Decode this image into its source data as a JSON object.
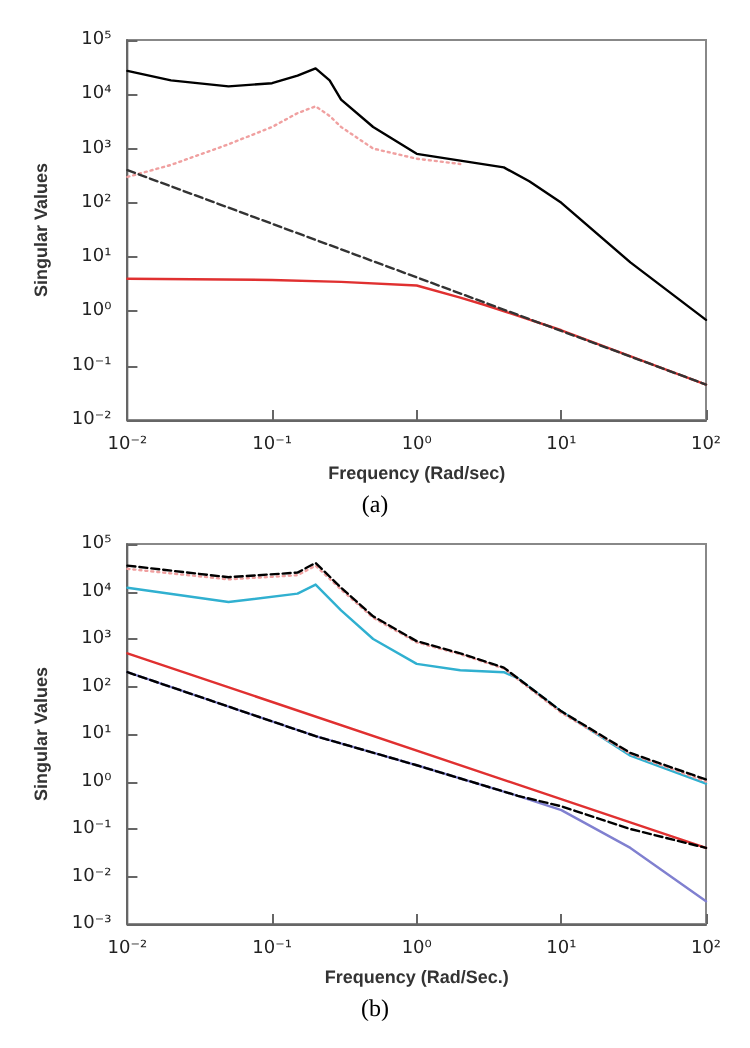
{
  "chart_data": [
    {
      "type": "line",
      "xlabel": "Frequency (Rad/sec)",
      "ylabel": "Singular Values",
      "annotations": [
        "(a)"
      ],
      "log": "xy",
      "grid": false,
      "marker": "none",
      "xlim": [
        0.01,
        100
      ],
      "ylim": [
        0.01,
        100000
      ],
      "xticks": [
        {
          "value": 0.01,
          "label": "10⁻²"
        },
        {
          "value": 0.1,
          "label": "10⁻¹"
        },
        {
          "value": 1,
          "label": "10⁰"
        },
        {
          "value": 10,
          "label": "10¹"
        },
        {
          "value": 100,
          "label": "10²"
        }
      ],
      "yticks": [
        {
          "value": 0.01,
          "label": "10⁻²"
        },
        {
          "value": 0.1,
          "label": "10⁻¹"
        },
        {
          "value": 1,
          "label": "10⁰"
        },
        {
          "value": 10,
          "label": "10¹"
        },
        {
          "value": 100,
          "label": "10²"
        },
        {
          "value": 1000,
          "label": "10³"
        },
        {
          "value": 10000,
          "label": "10⁴"
        },
        {
          "value": 100000,
          "label": "10⁵"
        }
      ],
      "series": [
        {
          "color": "#f0a0a0",
          "line_style": "dotted",
          "x": [
            0.01,
            0.02,
            0.05,
            0.1,
            0.15,
            0.2,
            0.25,
            0.3,
            0.5,
            1,
            2
          ],
          "values": [
            300,
            500,
            1200,
            2500,
            4500,
            6000,
            4000,
            2500,
            1000,
            650,
            520
          ]
        },
        {
          "color": "#000000",
          "line_style": "solid",
          "x": [
            0.01,
            0.02,
            0.05,
            0.1,
            0.15,
            0.2,
            0.25,
            0.3,
            0.5,
            1,
            2,
            4,
            6,
            10,
            30,
            100
          ],
          "values": [
            27000,
            18000,
            14000,
            16000,
            22000,
            30000,
            18000,
            8000,
            2500,
            800,
            600,
            450,
            250,
            100,
            8,
            0.7
          ]
        },
        {
          "color": "#e03030",
          "line_style": "solid",
          "x": [
            0.01,
            0.1,
            0.3,
            1,
            2,
            3,
            10,
            100
          ],
          "values": [
            4,
            3.8,
            3.5,
            3,
            1.8,
            1.3,
            0.45,
            0.045
          ]
        },
        {
          "color": "#333333",
          "line_style": "dashed",
          "x": [
            0.01,
            100
          ],
          "values": [
            400,
            0.045
          ]
        }
      ]
    },
    {
      "type": "line",
      "xlabel": "Frequency (Rad/Sec.)",
      "ylabel": "Singular Values",
      "annotations": [
        "(b)"
      ],
      "log": "xy",
      "grid": false,
      "marker": "none",
      "xlim": [
        0.01,
        100
      ],
      "ylim": [
        0.001,
        100000
      ],
      "xticks": [
        {
          "value": 0.01,
          "label": "10⁻²"
        },
        {
          "value": 0.1,
          "label": "10⁻¹"
        },
        {
          "value": 1,
          "label": "10⁰"
        },
        {
          "value": 10,
          "label": "10¹"
        },
        {
          "value": 100,
          "label": "10²"
        }
      ],
      "yticks": [
        {
          "value": 0.001,
          "label": "10⁻³"
        },
        {
          "value": 0.01,
          "label": "10⁻²"
        },
        {
          "value": 0.1,
          "label": "10⁻¹"
        },
        {
          "value": 1,
          "label": "10⁰"
        },
        {
          "value": 10,
          "label": "10¹"
        },
        {
          "value": 100,
          "label": "10²"
        },
        {
          "value": 1000,
          "label": "10³"
        },
        {
          "value": 10000,
          "label": "10⁴"
        },
        {
          "value": 100000,
          "label": "10⁵"
        }
      ],
      "series": [
        {
          "color": "#30b0d0",
          "line_style": "solid",
          "x": [
            0.01,
            0.05,
            0.15,
            0.2,
            0.3,
            0.5,
            1,
            2,
            4,
            5,
            10,
            30,
            100
          ],
          "values": [
            12000,
            6000,
            9000,
            14000,
            4000,
            1000,
            300,
            220,
            200,
            150,
            30,
            3.5,
            0.9
          ]
        },
        {
          "color": "#f0a0a0",
          "line_style": "dotted",
          "x": [
            0.01,
            0.05,
            0.15,
            0.2,
            0.3,
            0.5,
            1,
            2,
            4,
            10,
            30,
            100
          ],
          "values": [
            30000,
            18000,
            22000,
            35000,
            11000,
            2800,
            850,
            480,
            240,
            28,
            3.8,
            1
          ]
        },
        {
          "color": "#000000",
          "line_style": "dashed",
          "x": [
            0.01,
            0.05,
            0.15,
            0.2,
            0.3,
            0.5,
            1,
            2,
            4,
            10,
            30,
            100
          ],
          "values": [
            35000,
            20000,
            25000,
            40000,
            12000,
            3000,
            900,
            500,
            250,
            30,
            4,
            1.1
          ]
        },
        {
          "color": "#e03030",
          "line_style": "solid",
          "x": [
            0.01,
            100
          ],
          "values": [
            500,
            0.04
          ]
        },
        {
          "color": "#8080d0",
          "line_style": "solid",
          "x": [
            0.01,
            0.2,
            1,
            5,
            10,
            30,
            100
          ],
          "values": [
            200,
            9,
            2.2,
            0.5,
            0.25,
            0.04,
            0.003
          ]
        },
        {
          "color": "#000000",
          "line_style": "dashed",
          "x": [
            0.01,
            0.2,
            1,
            5,
            10,
            30,
            100
          ],
          "values": [
            200,
            9,
            2.2,
            0.5,
            0.3,
            0.1,
            0.04
          ]
        }
      ]
    }
  ]
}
